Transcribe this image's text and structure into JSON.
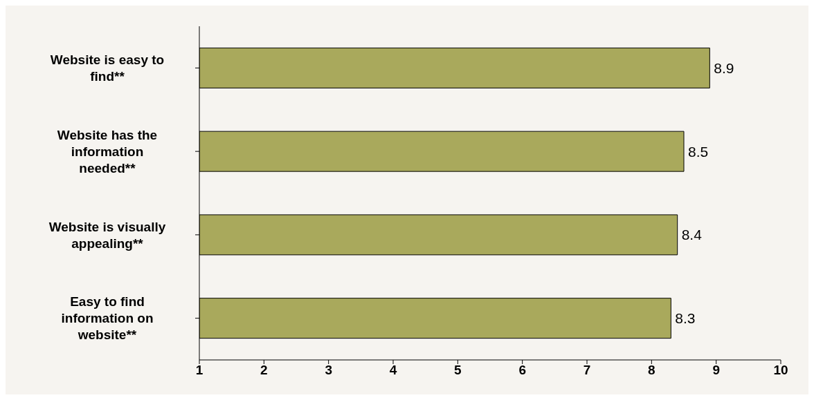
{
  "chart_data": {
    "type": "bar",
    "orientation": "horizontal",
    "categories": [
      "Website is easy to find**",
      "Website has the information needed**",
      "Website is visually appealing**",
      "Easy to find information on website**"
    ],
    "values": [
      8.9,
      8.5,
      8.4,
      8.3
    ],
    "color": "#a9a95c",
    "data_labels": true,
    "xlim": [
      1,
      10
    ],
    "xticks": [
      1,
      2,
      3,
      4,
      5,
      6,
      7,
      8,
      9,
      10
    ],
    "grid": false
  }
}
